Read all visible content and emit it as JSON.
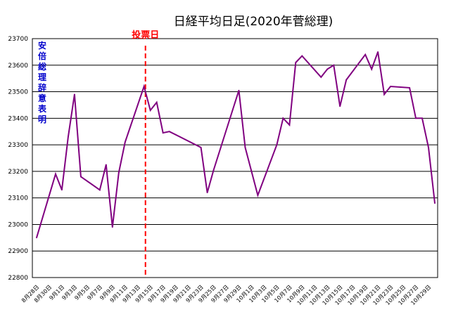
{
  "chart_data": {
    "type": "line",
    "title": "日経平均日足(2020年菅総理)",
    "xlabel": "",
    "ylabel": "",
    "ylim": [
      22800,
      23700
    ],
    "yticks": [
      22800,
      22900,
      23000,
      23100,
      23200,
      23300,
      23400,
      23500,
      23600,
      23700
    ],
    "grid": true,
    "line_color": "#800080",
    "x_tick_labels": [
      "8月28日",
      "8月30日",
      "9月1日",
      "9月3日",
      "9月5日",
      "9月7日",
      "9月9日",
      "9月11日",
      "9月13日",
      "9月15日",
      "9月17日",
      "9月19日",
      "9月21日",
      "9月23日",
      "9月25日",
      "9月27日",
      "9月29日",
      "10月1日",
      "10月3日",
      "10月5日",
      "10月7日",
      "10月9日",
      "10月11日",
      "10月13日",
      "10月15日",
      "10月17日",
      "10月19日",
      "10月21日",
      "10月23日",
      "10月25日",
      "10月27日",
      "10月29日"
    ],
    "series": [
      {
        "dates": [
          "8/28",
          "8/31",
          "9/1",
          "9/2",
          "9/3",
          "9/4",
          "9/7",
          "9/8",
          "9/9",
          "9/10",
          "9/11",
          "9/14",
          "9/15",
          "9/16",
          "9/17",
          "9/18",
          "9/23",
          "9/24",
          "9/25",
          "9/28",
          "9/29",
          "9/30",
          "10/2",
          "10/5",
          "10/6",
          "10/7",
          "10/8",
          "10/9",
          "10/12",
          "10/13",
          "10/14",
          "10/15",
          "10/16",
          "10/19",
          "10/20",
          "10/21",
          "10/22",
          "10/23",
          "10/26",
          "10/27",
          "10/28",
          "10/29",
          "10/30"
        ],
        "values": [
          22950,
          23190,
          23130,
          23330,
          23490,
          23180,
          23130,
          23225,
          22990,
          23195,
          23310,
          23520,
          23430,
          23460,
          23345,
          23350,
          23290,
          23120,
          23205,
          23430,
          23505,
          23290,
          23110,
          23300,
          23400,
          23375,
          23610,
          23635,
          23555,
          23585,
          23600,
          23445,
          23545,
          23640,
          23585,
          23650,
          23490,
          23520,
          23515,
          23400,
          23400,
          23290,
          23080
        ]
      }
    ],
    "annotations": [
      {
        "text": "投票日",
        "date": "9/14",
        "style": "dashed-vertical",
        "color": "#ff0000"
      },
      {
        "text": "安倍総理辞意表明",
        "date": "8/28",
        "orientation": "vertical",
        "color": "#0000cc"
      }
    ]
  }
}
